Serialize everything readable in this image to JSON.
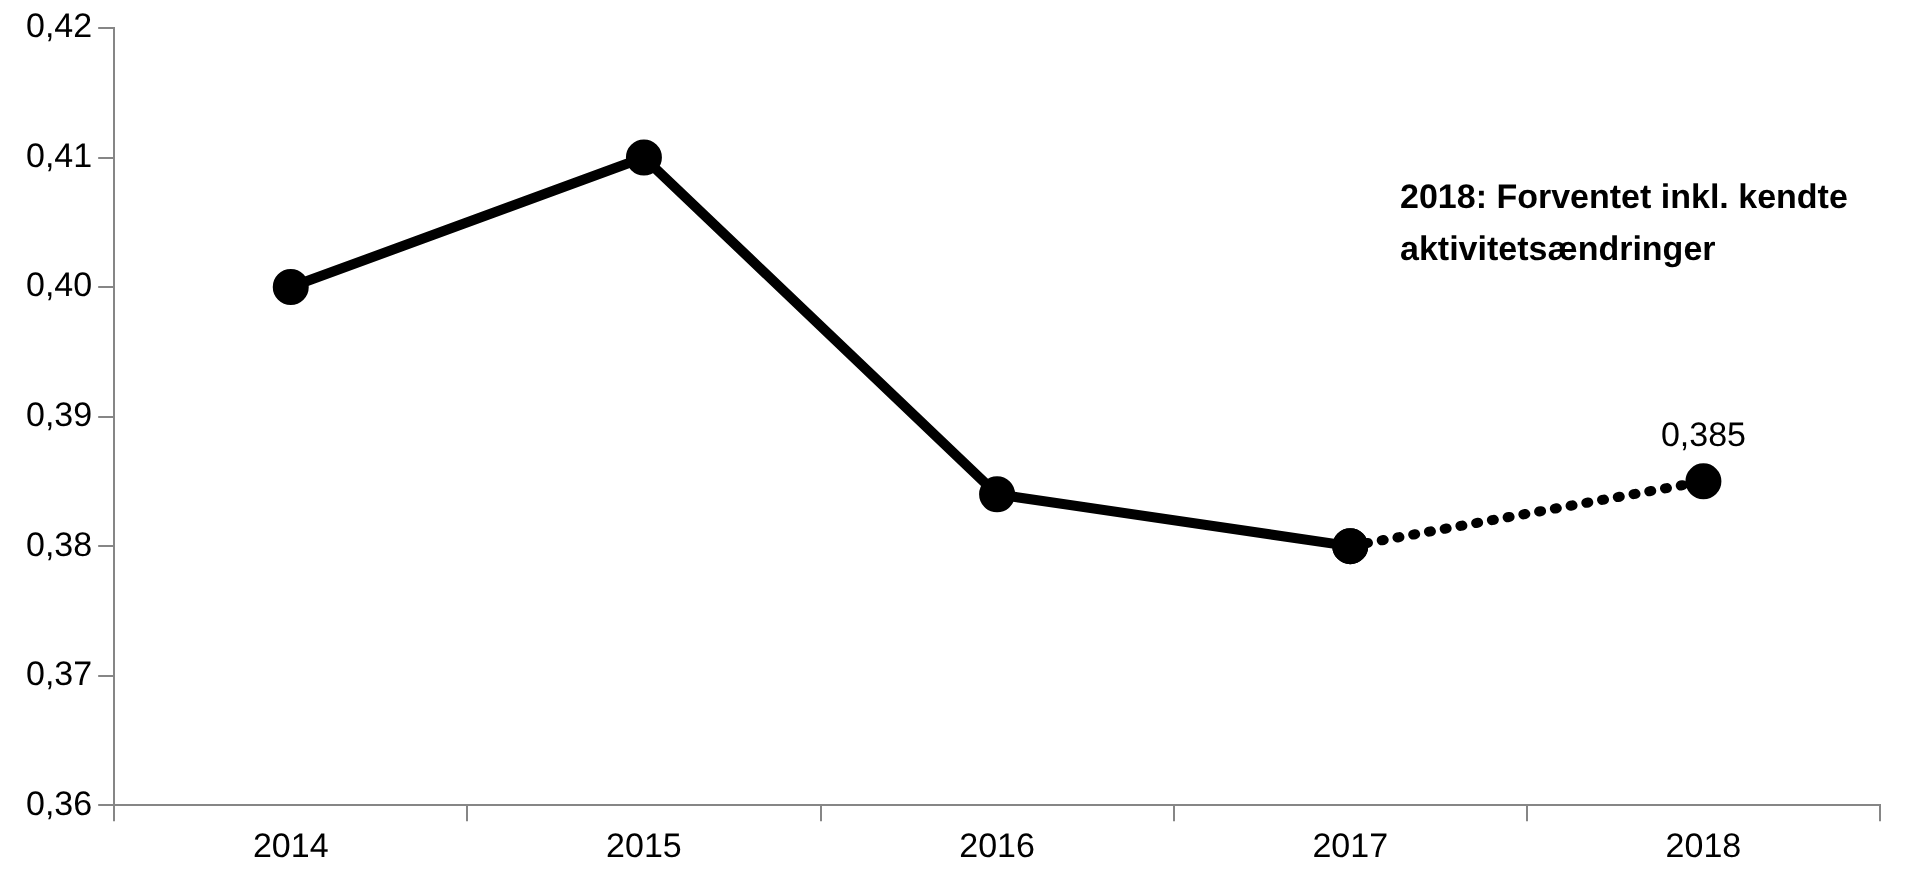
{
  "chart_data": {
    "type": "line",
    "categories": [
      "2014",
      "2015",
      "2016",
      "2017",
      "2018"
    ],
    "series": [
      {
        "color": "#000000",
        "values": [
          0.4,
          0.41,
          0.384,
          0.38,
          null
        ],
        "line_style": "solid"
      },
      {
        "color": "#000000",
        "values": [
          null,
          null,
          null,
          0.38,
          0.385
        ],
        "line_style": "dotted",
        "value_labels": [
          null,
          null,
          null,
          null,
          "0,385"
        ]
      }
    ],
    "ylim": [
      0.36,
      0.42
    ],
    "yticks": [
      {
        "value": 0.36,
        "label": "0,36"
      },
      {
        "value": 0.37,
        "label": "0,37"
      },
      {
        "value": 0.38,
        "label": "0,38"
      },
      {
        "value": 0.39,
        "label": "0,39"
      },
      {
        "value": 0.4,
        "label": "0,40"
      },
      {
        "value": 0.41,
        "label": "0,41"
      },
      {
        "value": 0.42,
        "label": "0,42"
      }
    ],
    "annotations": [
      "2018: Forventet inkl. kendte aktivitetsændringer"
    ],
    "marker": "circle",
    "grid": false,
    "legend": false
  }
}
